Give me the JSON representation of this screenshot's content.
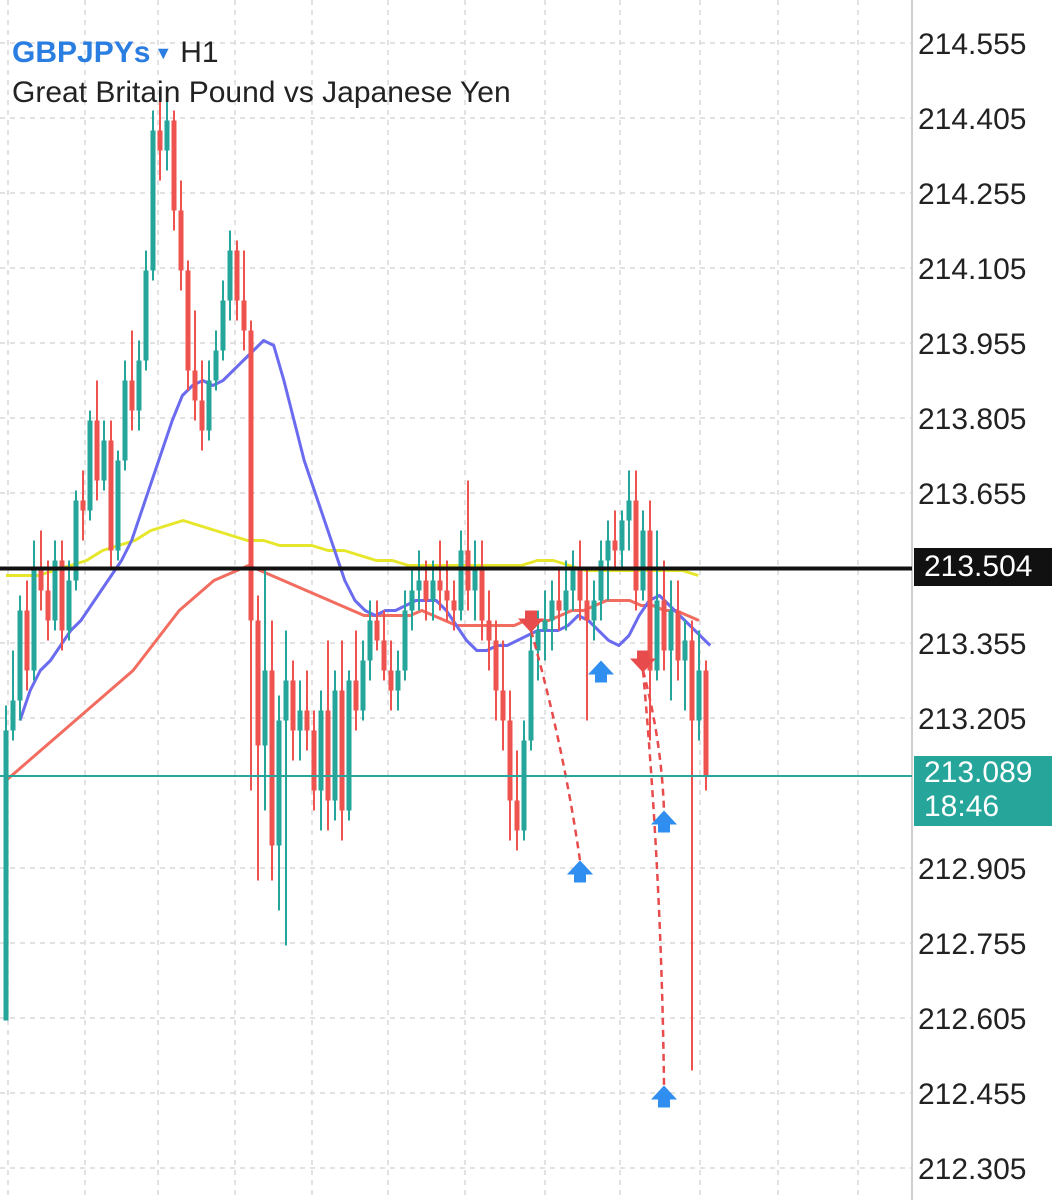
{
  "header": {
    "symbol": "GBPJPYs",
    "timeframe": "H1",
    "description": "Great Britain Pound vs Japanese Yen"
  },
  "colors": {
    "bull": "#26a69a",
    "bear": "#ef5350",
    "ma_fast": "#6b6bf0",
    "ma_mid": "#f26c5f",
    "ma_slow": "#e6e62a",
    "grid": "#d9d9d9",
    "black_line": "#111111",
    "current_line": "#26a69a",
    "signal_buy": "#2f8ef0",
    "signal_sell": "#e84b4b"
  },
  "markers": {
    "black_line_label": "213.504",
    "current_price_label": "213.089",
    "countdown_label": "18:46"
  },
  "chart_data": {
    "type": "candlestick",
    "symbol": "GBPJPYs",
    "timeframe": "H1",
    "y_ticks": [
      "214.555",
      "214.405",
      "214.255",
      "214.105",
      "213.955",
      "213.805",
      "213.655",
      "213.355",
      "213.205",
      "212.905",
      "212.755",
      "212.605",
      "212.455",
      "212.305"
    ],
    "ylim": [
      212.25,
      214.6
    ],
    "horizontal_lines": [
      {
        "price": 213.504,
        "label": "213.504",
        "color": "#111111"
      },
      {
        "price": 213.089,
        "label": "213.089",
        "color": "#26a69a"
      }
    ],
    "candles": [
      [
        212.6,
        213.23,
        212.6,
        213.18
      ],
      [
        213.18,
        213.34,
        213.16,
        213.24
      ],
      [
        213.24,
        213.45,
        213.2,
        213.42
      ],
      [
        213.42,
        213.48,
        213.26,
        213.3
      ],
      [
        213.3,
        213.56,
        213.28,
        213.5
      ],
      [
        213.5,
        213.58,
        213.42,
        213.46
      ],
      [
        213.46,
        213.52,
        213.36,
        213.4
      ],
      [
        213.4,
        213.56,
        213.38,
        213.52
      ],
      [
        213.52,
        213.56,
        213.34,
        213.38
      ],
      [
        213.38,
        213.52,
        213.36,
        213.48
      ],
      [
        213.48,
        213.66,
        213.46,
        213.64
      ],
      [
        213.64,
        213.7,
        213.56,
        213.62
      ],
      [
        213.62,
        213.82,
        213.6,
        213.8
      ],
      [
        213.8,
        213.88,
        213.64,
        213.68
      ],
      [
        213.68,
        213.8,
        213.66,
        213.76
      ],
      [
        213.76,
        213.8,
        213.5,
        213.54
      ],
      [
        213.54,
        213.74,
        213.52,
        213.72
      ],
      [
        213.72,
        213.92,
        213.7,
        213.88
      ],
      [
        213.88,
        213.98,
        213.78,
        213.82
      ],
      [
        213.82,
        213.96,
        213.78,
        213.92
      ],
      [
        213.92,
        214.14,
        213.9,
        214.1
      ],
      [
        214.1,
        214.42,
        214.08,
        214.38
      ],
      [
        214.38,
        214.46,
        214.28,
        214.34
      ],
      [
        214.34,
        214.44,
        214.3,
        214.4
      ],
      [
        214.4,
        214.42,
        214.18,
        214.22
      ],
      [
        214.22,
        214.28,
        214.06,
        214.1
      ],
      [
        214.1,
        214.12,
        213.86,
        213.9
      ],
      [
        213.9,
        214.02,
        213.8,
        213.84
      ],
      [
        213.84,
        213.92,
        213.74,
        213.78
      ],
      [
        213.78,
        213.92,
        213.76,
        213.88
      ],
      [
        213.88,
        213.98,
        213.86,
        213.94
      ],
      [
        213.94,
        214.08,
        213.92,
        214.04
      ],
      [
        214.04,
        214.18,
        214.0,
        214.14
      ],
      [
        214.14,
        214.16,
        214.0,
        214.04
      ],
      [
        214.04,
        214.14,
        213.94,
        213.98
      ],
      [
        213.98,
        214.0,
        213.06,
        213.4
      ],
      [
        213.4,
        213.45,
        212.88,
        213.15
      ],
      [
        213.15,
        213.5,
        213.02,
        213.3
      ],
      [
        213.3,
        213.4,
        212.88,
        212.95
      ],
      [
        212.95,
        213.25,
        212.82,
        213.2
      ],
      [
        213.2,
        213.38,
        212.75,
        213.28
      ],
      [
        213.28,
        213.32,
        213.12,
        213.18
      ],
      [
        213.18,
        213.28,
        213.12,
        213.22
      ],
      [
        213.22,
        213.3,
        213.14,
        213.18
      ],
      [
        213.18,
        213.22,
        213.02,
        213.06
      ],
      [
        213.06,
        213.26,
        212.98,
        213.22
      ],
      [
        213.22,
        213.36,
        212.98,
        213.04
      ],
      [
        213.04,
        213.3,
        213.0,
        213.26
      ],
      [
        213.26,
        213.36,
        212.96,
        213.02
      ],
      [
        213.02,
        213.3,
        213.0,
        213.28
      ],
      [
        213.28,
        213.38,
        213.18,
        213.22
      ],
      [
        213.22,
        213.36,
        213.2,
        213.32
      ],
      [
        213.32,
        213.44,
        213.28,
        213.4
      ],
      [
        213.4,
        213.44,
        213.34,
        213.36
      ],
      [
        213.36,
        213.42,
        213.28,
        213.3
      ],
      [
        213.3,
        213.36,
        213.22,
        213.26
      ],
      [
        213.26,
        213.34,
        213.22,
        213.3
      ],
      [
        213.3,
        213.46,
        213.28,
        213.42
      ],
      [
        213.42,
        213.5,
        213.38,
        213.46
      ],
      [
        213.46,
        213.54,
        213.42,
        213.48
      ],
      [
        213.48,
        213.52,
        213.4,
        213.44
      ],
      [
        213.44,
        213.52,
        213.4,
        213.48
      ],
      [
        213.48,
        213.56,
        213.42,
        213.46
      ],
      [
        213.46,
        213.52,
        213.4,
        213.44
      ],
      [
        213.44,
        213.48,
        213.38,
        213.42
      ],
      [
        213.42,
        213.58,
        213.4,
        213.54
      ],
      [
        213.54,
        213.68,
        213.42,
        213.46
      ],
      [
        213.46,
        213.56,
        213.4,
        213.5
      ],
      [
        213.5,
        213.56,
        213.36,
        213.4
      ],
      [
        213.4,
        213.46,
        213.3,
        213.36
      ],
      [
        213.36,
        213.4,
        213.2,
        213.26
      ],
      [
        213.26,
        213.36,
        213.14,
        213.2
      ],
      [
        213.2,
        213.26,
        212.96,
        213.04
      ],
      [
        213.04,
        213.14,
        212.94,
        212.98
      ],
      [
        212.98,
        213.2,
        212.96,
        213.16
      ],
      [
        213.16,
        213.38,
        213.14,
        213.34
      ],
      [
        213.34,
        213.42,
        213.28,
        213.38
      ],
      [
        213.38,
        213.46,
        213.32,
        213.4
      ],
      [
        213.4,
        213.48,
        213.34,
        213.44
      ],
      [
        213.44,
        213.5,
        213.38,
        213.42
      ],
      [
        213.42,
        213.52,
        213.38,
        213.46
      ],
      [
        213.46,
        213.54,
        213.42,
        213.5
      ],
      [
        213.5,
        213.56,
        213.4,
        213.44
      ],
      [
        213.44,
        213.5,
        213.2,
        213.4
      ],
      [
        213.4,
        213.48,
        213.36,
        213.44
      ],
      [
        213.44,
        213.56,
        213.4,
        213.52
      ],
      [
        213.52,
        213.6,
        213.44,
        213.56
      ],
      [
        213.56,
        213.62,
        213.5,
        213.54
      ],
      [
        213.54,
        213.62,
        213.5,
        213.6
      ],
      [
        213.6,
        213.7,
        213.54,
        213.64
      ],
      [
        213.64,
        213.7,
        213.42,
        213.46
      ],
      [
        213.46,
        213.62,
        213.44,
        213.58
      ],
      [
        213.58,
        213.64,
        213.16,
        213.3
      ],
      [
        213.3,
        213.58,
        213.28,
        213.44
      ],
      [
        213.44,
        213.52,
        213.3,
        213.34
      ],
      [
        213.34,
        213.48,
        213.24,
        213.42
      ],
      [
        213.42,
        213.48,
        213.28,
        213.32
      ],
      [
        213.32,
        213.4,
        213.22,
        213.36
      ],
      [
        213.36,
        213.4,
        212.5,
        213.2
      ],
      [
        213.2,
        213.38,
        213.16,
        213.3
      ],
      [
        213.3,
        213.32,
        213.06,
        213.09
      ]
    ],
    "ma_fast": [
      213.2,
      213.26,
      213.3,
      213.32,
      213.35,
      213.38,
      213.4,
      213.43,
      213.46,
      213.49,
      213.52,
      213.56,
      213.62,
      213.68,
      213.74,
      213.8,
      213.85,
      213.87,
      213.88,
      213.87,
      213.88,
      213.9,
      213.92,
      213.94,
      213.96,
      213.95,
      213.88,
      213.8,
      213.72,
      213.66,
      213.6,
      213.54,
      213.48,
      213.44,
      213.42,
      213.41,
      213.42,
      213.42,
      213.43,
      213.44,
      213.44,
      213.44,
      213.42,
      213.39,
      213.36,
      213.34,
      213.34,
      213.35,
      213.35,
      213.36,
      213.37,
      213.38,
      213.38,
      213.38,
      213.39,
      213.41,
      213.4,
      213.38,
      213.36,
      213.35,
      213.37,
      213.41,
      213.44,
      213.45,
      213.43,
      213.41,
      213.39,
      213.37,
      213.35
    ],
    "ma_fast_x0": 2,
    "ma_mid": [
      213.08,
      213.1,
      213.12,
      213.14,
      213.16,
      213.18,
      213.2,
      213.22,
      213.24,
      213.26,
      213.28,
      213.3,
      213.33,
      213.36,
      213.39,
      213.42,
      213.44,
      213.46,
      213.48,
      213.49,
      213.5,
      213.51,
      213.5,
      213.49,
      213.48,
      213.47,
      213.46,
      213.45,
      213.44,
      213.43,
      213.42,
      213.41,
      213.41,
      213.41,
      213.41,
      213.41,
      213.42,
      213.41,
      213.4,
      213.39,
      213.39,
      213.39,
      213.39,
      213.39,
      213.39,
      213.4,
      213.4,
      213.4,
      213.41,
      213.42,
      213.42,
      213.43,
      213.44,
      213.44,
      213.44,
      213.43,
      213.43,
      213.42,
      213.42,
      213.41,
      213.4
    ],
    "ma_mid_x0": 0,
    "ma_slow": [
      213.49,
      213.49,
      213.49,
      213.5,
      213.51,
      213.52,
      213.54,
      213.55,
      213.56,
      213.58,
      213.59,
      213.6,
      213.59,
      213.58,
      213.57,
      213.56,
      213.56,
      213.55,
      213.55,
      213.55,
      213.54,
      213.54,
      213.53,
      213.52,
      213.52,
      213.51,
      213.51,
      213.51,
      213.51,
      213.51,
      213.51,
      213.51,
      213.51,
      213.52,
      213.52,
      213.51,
      213.5,
      213.5,
      213.5,
      213.5,
      213.5,
      213.5,
      213.5,
      213.49
    ],
    "ma_slow_x0": 0,
    "buy_signals": [
      [
        82,
        212.92
      ],
      [
        82,
        212.92
      ],
      [
        85,
        213.32
      ],
      [
        94,
        213.02
      ],
      [
        94,
        212.47
      ]
    ],
    "sell_signals": [
      [
        75,
        213.38
      ],
      [
        91,
        213.3
      ]
    ]
  }
}
